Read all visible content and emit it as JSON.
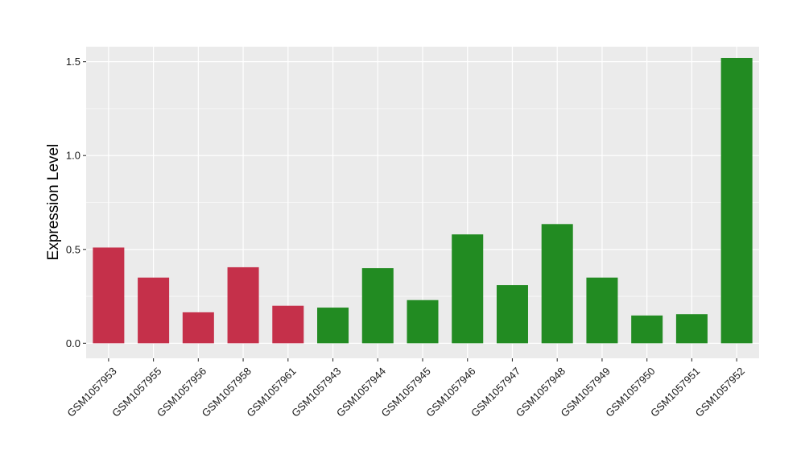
{
  "chart_data": {
    "type": "bar",
    "ylabel": "Expression Level",
    "xlabel": "",
    "ylim": [
      -0.08,
      1.58
    ],
    "yticks": [
      0.0,
      0.5,
      1.0,
      1.5
    ],
    "ytick_labels": [
      "0.0",
      "0.5",
      "1.0",
      "1.5"
    ],
    "grid": true,
    "background_color": "#EBEBEB",
    "grid_color": "#FFFFFF",
    "categories": [
      "GSM1057953",
      "GSM1057955",
      "GSM1057956",
      "GSM1057958",
      "GSM1057961",
      "GSM1057943",
      "GSM1057944",
      "GSM1057945",
      "GSM1057946",
      "GSM1057947",
      "GSM1057948",
      "GSM1057949",
      "GSM1057950",
      "GSM1057951",
      "GSM1057952"
    ],
    "values": [
      0.51,
      0.35,
      0.165,
      0.405,
      0.2,
      0.19,
      0.4,
      0.23,
      0.58,
      0.31,
      0.635,
      0.35,
      0.148,
      0.155,
      1.52
    ],
    "group_colors": [
      "#C5304A",
      "#C5304A",
      "#C5304A",
      "#C5304A",
      "#C5304A",
      "#228B22",
      "#228B22",
      "#228B22",
      "#228B22",
      "#228B22",
      "#228B22",
      "#228B22",
      "#228B22",
      "#228B22",
      "#228B22"
    ]
  }
}
